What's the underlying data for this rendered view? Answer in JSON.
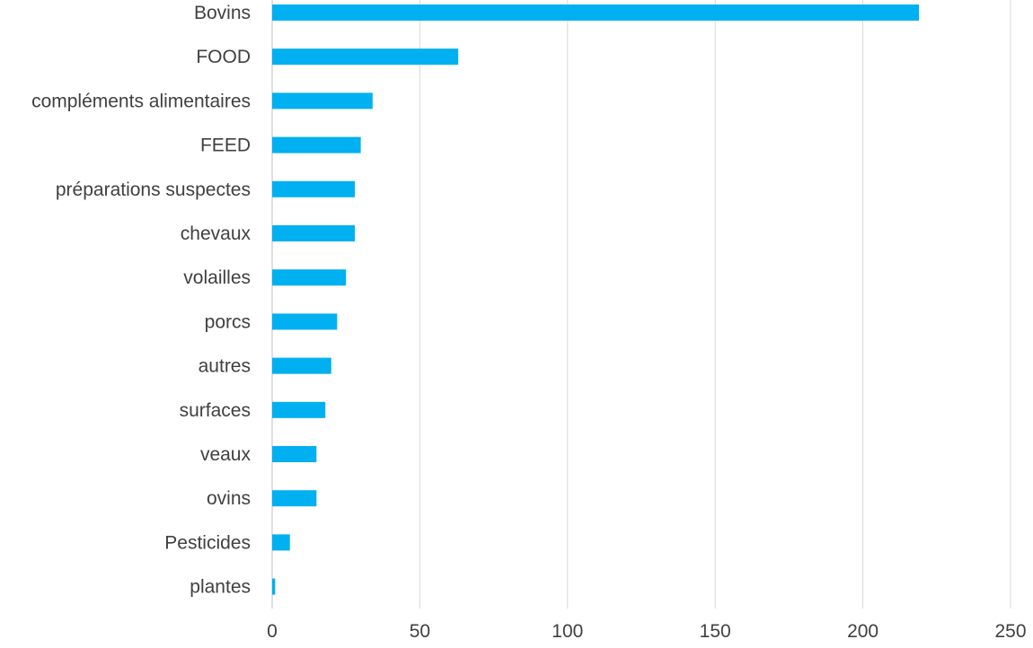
{
  "chart_data": {
    "type": "bar",
    "orientation": "horizontal",
    "title": "",
    "xlabel": "",
    "ylabel": "",
    "categories": [
      "Bovins",
      "FOOD",
      "compléments alimentaires",
      "FEED",
      "préparations suspectes",
      "chevaux",
      "volailles",
      "porcs",
      "autres",
      "surfaces",
      "veaux",
      "ovins",
      "Pesticides",
      "plantes"
    ],
    "values": [
      219,
      63,
      34,
      30,
      28,
      28,
      25,
      22,
      20,
      18,
      15,
      15,
      6,
      1
    ],
    "xlim": [
      0,
      250
    ],
    "xticks": [
      0,
      50,
      100,
      150,
      200,
      250
    ],
    "xtick_labels": [
      "0",
      "50",
      "100",
      "150",
      "200",
      "250"
    ],
    "grid": true,
    "legend": "none",
    "bar_color": "#00b0f0",
    "grid_color": "#d9d9d9",
    "text_color": "#404040"
  }
}
